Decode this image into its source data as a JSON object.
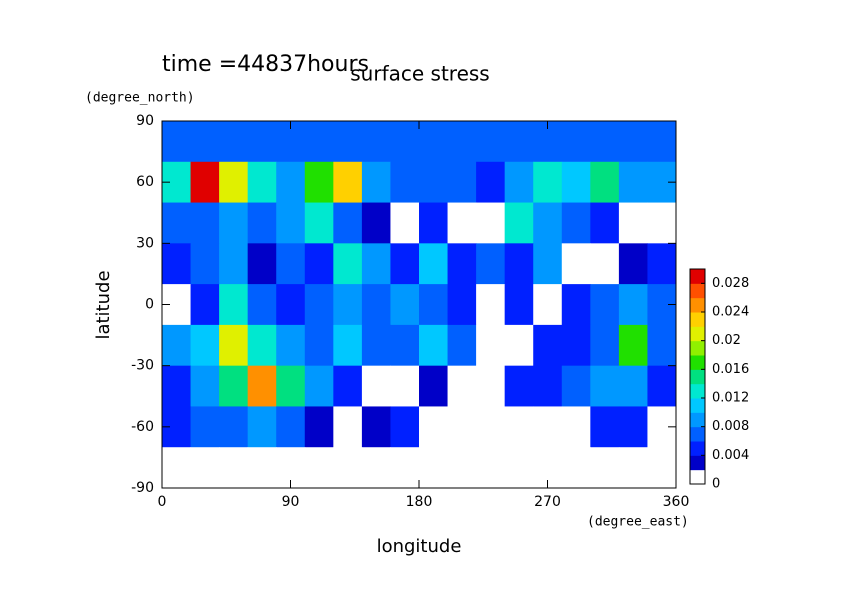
{
  "chart_data": {
    "type": "heatmap",
    "title": "surface stress",
    "subtitle": "time =44837hours",
    "x_label": "longitude",
    "y_label": "latitude",
    "x_units": "(degree_east)",
    "y_units": "(degree_north)",
    "xlim": [
      0,
      360
    ],
    "ylim": [
      -90,
      90
    ],
    "xticks": [
      0,
      90,
      180,
      270,
      360
    ],
    "yticks": [
      -90,
      -60,
      -30,
      0,
      30,
      60,
      90
    ],
    "x": [
      10,
      30,
      50,
      70,
      90,
      110,
      130,
      150,
      170,
      190,
      210,
      230,
      250,
      270,
      290,
      310,
      330,
      350
    ],
    "y": [
      80,
      60,
      40,
      20,
      0,
      -20,
      -40,
      -60,
      -80
    ],
    "z": [
      [
        0.006,
        0.006,
        0.006,
        0.006,
        0.006,
        0.006,
        0.006,
        0.006,
        0.006,
        0.006,
        0.006,
        0.006,
        0.006,
        0.006,
        0.006,
        0.006,
        0.006,
        0.006
      ],
      [
        0.012,
        0.028,
        0.02,
        0.012,
        0.008,
        0.016,
        0.022,
        0.008,
        0.006,
        0.006,
        0.006,
        0.005,
        0.008,
        0.012,
        0.01,
        0.014,
        0.008,
        0.008
      ],
      [
        0.006,
        0.006,
        0.008,
        0.006,
        0.008,
        0.012,
        0.006,
        0.002,
        0.001,
        0.004,
        0.001,
        0,
        0.012,
        0.008,
        0.006,
        0.004,
        0,
        0
      ],
      [
        0.004,
        0.006,
        0.008,
        0.002,
        0.006,
        0.004,
        0.012,
        0.008,
        0.004,
        0.01,
        0.004,
        0.006,
        0.004,
        0.008,
        0,
        0,
        0.002,
        0.004
      ],
      [
        0.001,
        0.004,
        0.012,
        0.006,
        0.004,
        0.006,
        0.008,
        0.006,
        0.008,
        0.006,
        0.004,
        0,
        0.004,
        0,
        0.004,
        0.006,
        0.008,
        0.006
      ],
      [
        0.008,
        0.01,
        0.02,
        0.012,
        0.008,
        0.006,
        0.01,
        0.006,
        0.006,
        0.01,
        0.006,
        0,
        0,
        0.004,
        0.004,
        0.006,
        0.016,
        0.006
      ],
      [
        0.004,
        0.008,
        0.014,
        0.024,
        0.014,
        0.008,
        0.004,
        0,
        0,
        0.002,
        0,
        0,
        0.004,
        0.004,
        0.006,
        0.008,
        0.008,
        0.004
      ],
      [
        0.004,
        0.006,
        0.006,
        0.008,
        0.006,
        0.002,
        0,
        0.002,
        0.004,
        0,
        0,
        0,
        0,
        0,
        0,
        0.004,
        0.004,
        0
      ],
      [
        0,
        0,
        0,
        0,
        0,
        0,
        0,
        0,
        0,
        0,
        0,
        0,
        0,
        0,
        0,
        0,
        0,
        0
      ]
    ],
    "clim": [
      0,
      0.03
    ],
    "levels": [
      0,
      0.002,
      0.004,
      0.006,
      0.008,
      0.01,
      0.012,
      0.014,
      0.016,
      0.018,
      0.02,
      0.022,
      0.024,
      0.026,
      0.028,
      0.03
    ],
    "colors": [
      "#ffffff",
      "#0000c8",
      "#0020ff",
      "#0060ff",
      "#0098ff",
      "#00c8ff",
      "#00e8d0",
      "#00e080",
      "#20e000",
      "#90f000",
      "#e0f000",
      "#ffd000",
      "#ff9000",
      "#ff5000",
      "#e00000"
    ],
    "cticks": [
      0,
      0.004,
      0.008,
      0.012,
      0.016,
      0.02,
      0.024,
      0.028
    ]
  }
}
